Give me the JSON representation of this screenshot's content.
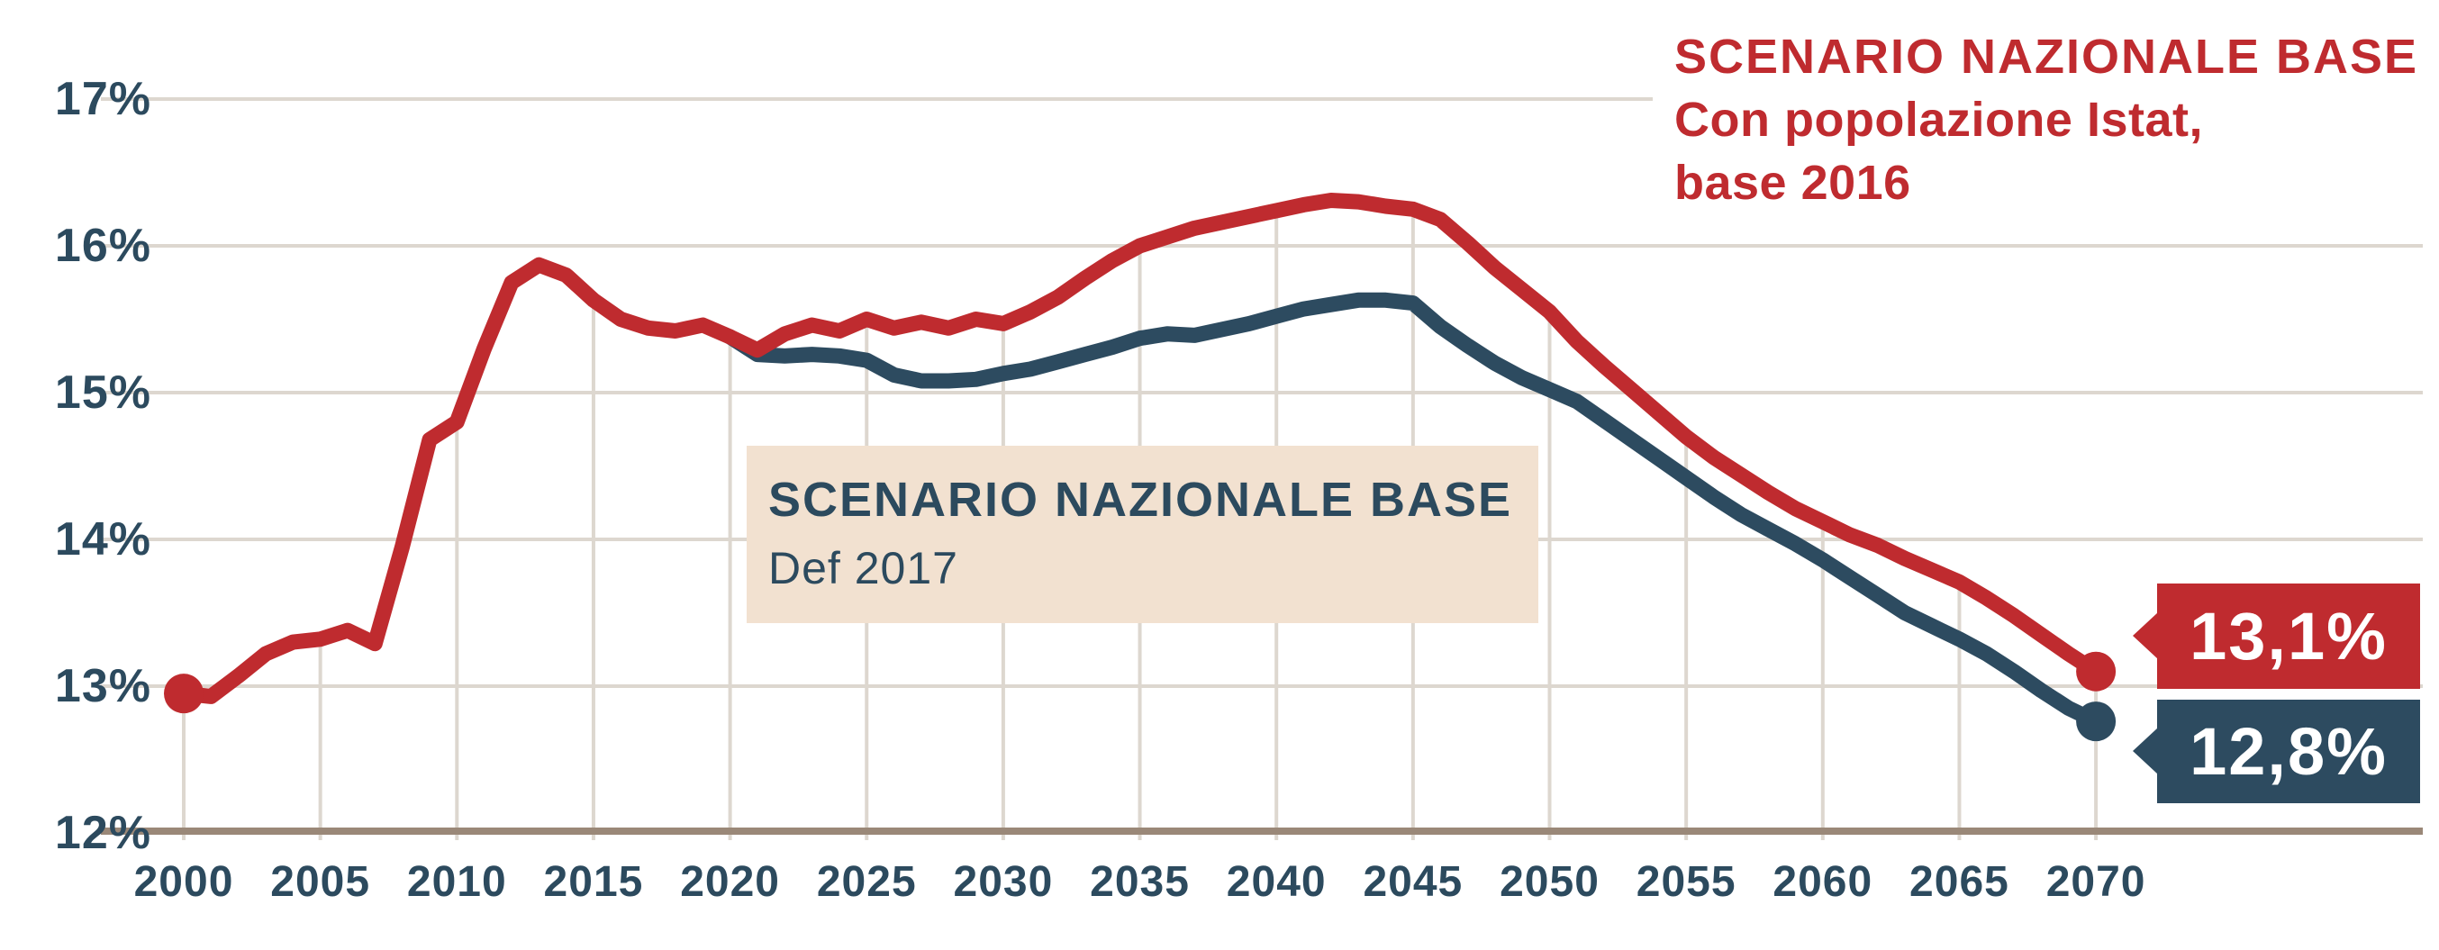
{
  "colors": {
    "red": "#bf2b2f",
    "dark_blue": "#2d4b60",
    "text_blue": "#2c4a5e",
    "beige_box": "#f2e1d0",
    "gridline": "#ddd7cf",
    "axis_line": "#9a8878",
    "background": "#ffffff"
  },
  "chart_data": {
    "type": "line",
    "title": "",
    "xlabel": "",
    "ylabel": "",
    "ylim": [
      12,
      17
    ],
    "xlim": [
      2000,
      2070
    ],
    "grid": true,
    "yticks": [
      "17%",
      "16%",
      "15%",
      "14%",
      "13%",
      "12%"
    ],
    "ytick_values": [
      17,
      16,
      15,
      14,
      13,
      12
    ],
    "xticks": [
      "2000",
      "2005",
      "2010",
      "2015",
      "2020",
      "2025",
      "2030",
      "2035",
      "2040",
      "2045",
      "2050",
      "2055",
      "2060",
      "2065",
      "2070"
    ],
    "xtick_values": [
      2000,
      2005,
      2010,
      2015,
      2020,
      2025,
      2030,
      2035,
      2040,
      2045,
      2050,
      2055,
      2060,
      2065,
      2070
    ],
    "x_years": [
      2000,
      2001,
      2002,
      2003,
      2004,
      2005,
      2006,
      2007,
      2008,
      2009,
      2010,
      2011,
      2012,
      2013,
      2014,
      2015,
      2016,
      2017,
      2018,
      2019,
      2020,
      2021,
      2022,
      2023,
      2024,
      2025,
      2026,
      2027,
      2028,
      2029,
      2030,
      2031,
      2032,
      2033,
      2034,
      2035,
      2036,
      2037,
      2038,
      2039,
      2040,
      2041,
      2042,
      2043,
      2044,
      2045,
      2046,
      2047,
      2048,
      2049,
      2050,
      2051,
      2052,
      2053,
      2054,
      2055,
      2056,
      2057,
      2058,
      2059,
      2060,
      2061,
      2062,
      2063,
      2064,
      2065,
      2066,
      2067,
      2068,
      2069,
      2070
    ],
    "series": [
      {
        "name": "Scenario Nazionale Base - Con popolazione Istat, base 2016",
        "color_key": "red",
        "start_dot": true,
        "end_dot": true,
        "values": [
          12.95,
          12.93,
          13.07,
          13.22,
          13.3,
          13.32,
          13.38,
          13.29,
          13.95,
          14.68,
          14.8,
          15.3,
          15.75,
          15.87,
          15.8,
          15.63,
          15.5,
          15.44,
          15.42,
          15.46,
          15.38,
          15.29,
          15.4,
          15.46,
          15.42,
          15.5,
          15.44,
          15.48,
          15.44,
          15.5,
          15.47,
          15.55,
          15.65,
          15.78,
          15.9,
          16.0,
          16.06,
          16.12,
          16.16,
          16.2,
          16.24,
          16.28,
          16.31,
          16.3,
          16.27,
          16.25,
          16.18,
          16.02,
          15.85,
          15.7,
          15.55,
          15.35,
          15.18,
          15.02,
          14.86,
          14.7,
          14.56,
          14.44,
          14.32,
          14.21,
          14.12,
          14.03,
          13.96,
          13.87,
          13.79,
          13.71,
          13.6,
          13.48,
          13.35,
          13.22,
          13.1
        ]
      },
      {
        "name": "Scenario Nazionale Base - Def 2017",
        "color_key": "dark_blue",
        "start_dot": false,
        "end_dot": true,
        "values": [
          null,
          null,
          null,
          null,
          null,
          null,
          null,
          null,
          null,
          null,
          null,
          null,
          null,
          null,
          null,
          null,
          null,
          null,
          null,
          null,
          15.38,
          15.26,
          15.25,
          15.26,
          15.25,
          15.22,
          15.12,
          15.08,
          15.08,
          15.09,
          15.13,
          15.16,
          15.21,
          15.26,
          15.31,
          15.37,
          15.4,
          15.39,
          15.43,
          15.47,
          15.52,
          15.57,
          15.6,
          15.63,
          15.63,
          15.61,
          15.45,
          15.32,
          15.2,
          15.1,
          15.02,
          14.94,
          14.81,
          14.68,
          14.55,
          14.42,
          14.29,
          14.17,
          14.07,
          13.97,
          13.86,
          13.74,
          13.62,
          13.5,
          13.41,
          13.32,
          13.22,
          13.1,
          12.97,
          12.85,
          12.76
        ]
      }
    ],
    "annotations": {
      "top_right": {
        "title": "SCENARIO NAZIONALE BASE",
        "line2": "Con popolazione Istat,",
        "line3": "base 2016"
      },
      "inline_box": {
        "title": "SCENARIO NAZIONALE BASE",
        "subtitle": "Def 2017"
      },
      "end_labels": {
        "red": "13,1%",
        "blue": "12,8%"
      }
    },
    "legend_position": "top-right text annotation (red) and inline beige box (blue)"
  }
}
